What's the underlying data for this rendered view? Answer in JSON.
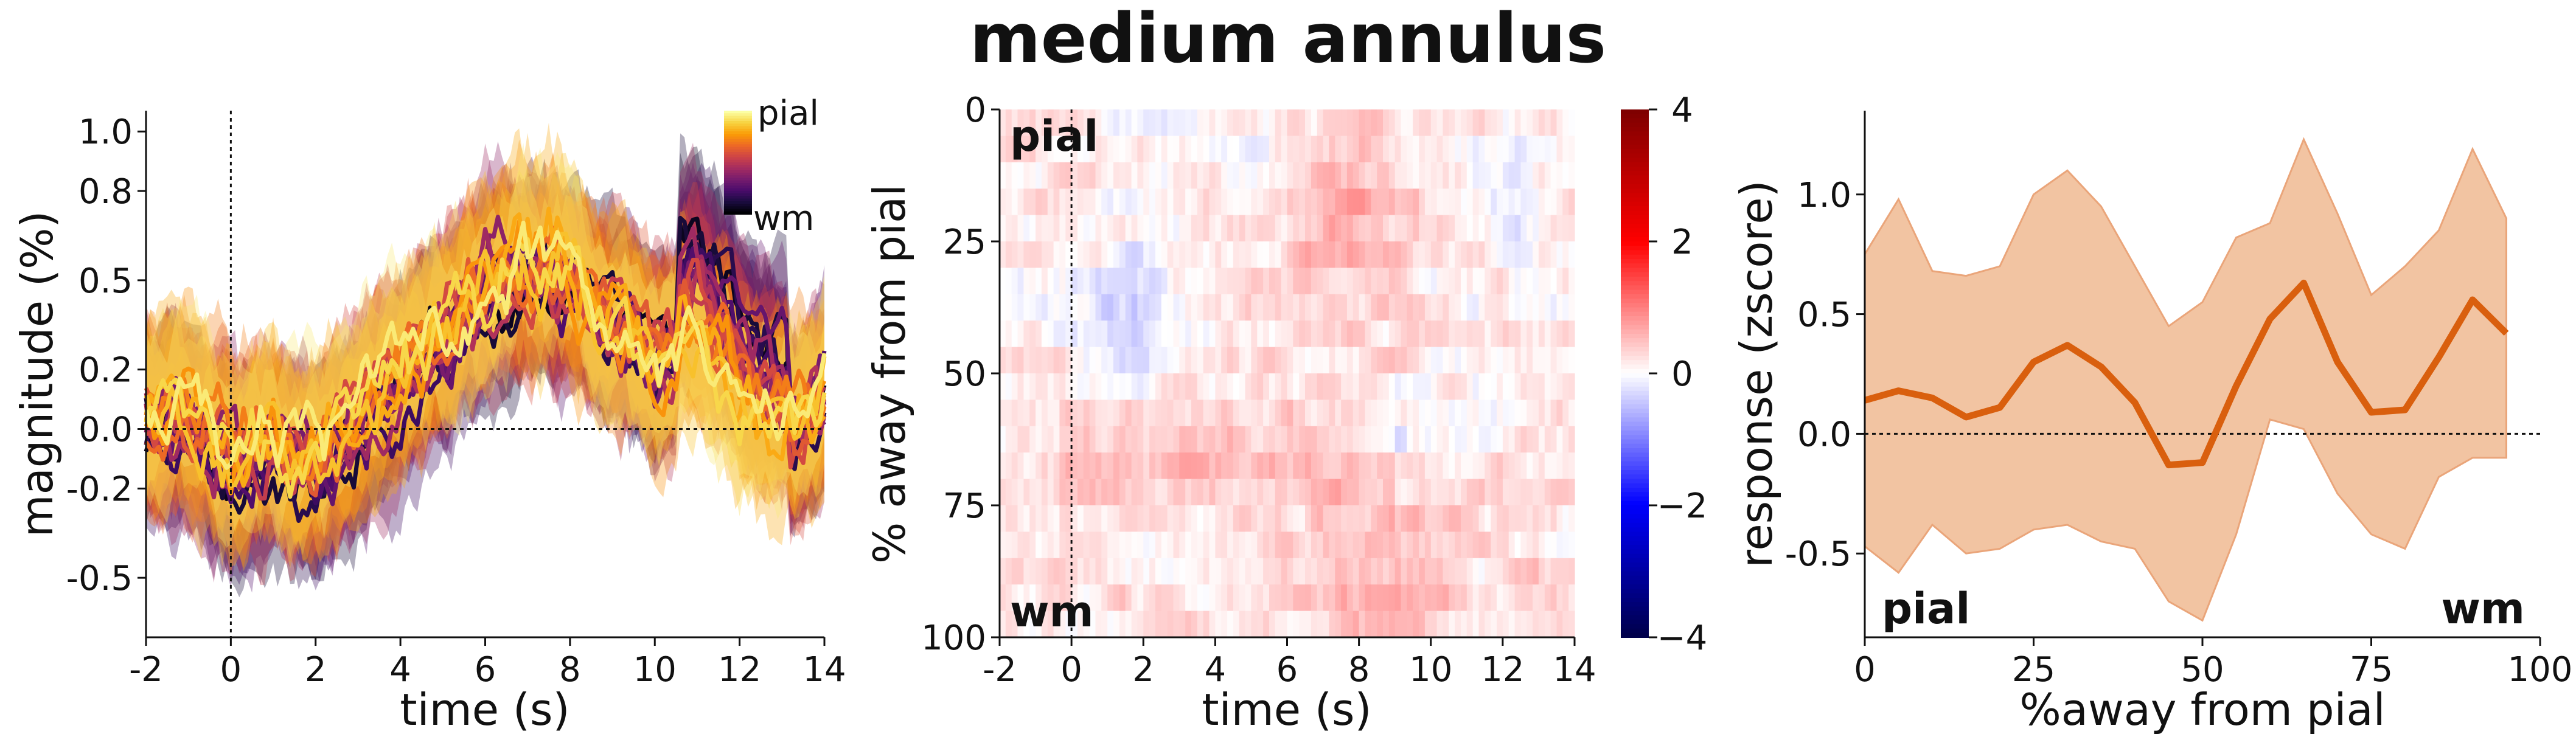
{
  "figure": {
    "title": "medium annulus",
    "title_color": "#d95f0e"
  },
  "chart_data": [
    {
      "type": "line",
      "panel": "left",
      "xlabel": "time (s)",
      "ylabel": "magnitude (%)",
      "xlim": [
        -2,
        14
      ],
      "ylim": [
        -0.7,
        1.07
      ],
      "xticks": [
        -2,
        0,
        2,
        4,
        6,
        8,
        10,
        12,
        14
      ],
      "xtick_labels": [
        "-2",
        "0",
        "2",
        "4",
        "6",
        "8",
        "10",
        "12",
        "14"
      ],
      "yticks": [
        -0.5,
        -0.2,
        0.0,
        0.2,
        0.5,
        0.8,
        1.0
      ],
      "ytick_labels": [
        "-0.5",
        "-0.2",
        "0.0",
        "0.2",
        "0.5",
        "0.8",
        "1.0"
      ],
      "grid": false,
      "reference_lines": {
        "x": 0,
        "y": 0
      },
      "colorbar": {
        "colormap": "inferno",
        "top_label": "pial",
        "bottom_label": "wm"
      },
      "layers": 20,
      "x": [
        -2,
        -1,
        0,
        1,
        2,
        3,
        4,
        5,
        6,
        7,
        8,
        9,
        10,
        11,
        12,
        13,
        14
      ],
      "mean_response": [
        0.05,
        0.02,
        -0.1,
        -0.05,
        -0.12,
        0.05,
        0.2,
        0.3,
        0.45,
        0.55,
        0.5,
        0.35,
        0.2,
        0.3,
        0.05,
        -0.05,
        0.1
      ],
      "note": "20 layer-wise series (pial to wm) colored by inferno colormap with shaded error bands"
    },
    {
      "type": "heatmap",
      "panel": "middle",
      "xlabel": "time (s)",
      "ylabel": "% away from pial",
      "xlim": [
        -2,
        14
      ],
      "ylim": [
        100,
        0
      ],
      "xticks": [
        -2,
        0,
        2,
        4,
        6,
        8,
        10,
        12,
        14
      ],
      "xtick_labels": [
        "-2",
        "0",
        "2",
        "4",
        "6",
        "8",
        "10",
        "12",
        "14"
      ],
      "yticks": [
        0,
        25,
        50,
        75,
        100
      ],
      "ytick_labels": [
        "0",
        "25",
        "50",
        "75",
        "100"
      ],
      "top_label": "pial",
      "bottom_label": "wm",
      "reference_lines": {
        "x": 0
      },
      "colorbar": {
        "colormap": "seismic",
        "vmin": -4,
        "vmax": 4,
        "ticks": [
          4,
          2,
          0,
          -2,
          -4
        ],
        "tick_labels": [
          "4",
          "2",
          "0",
          "−2",
          "−4"
        ]
      }
    },
    {
      "type": "line",
      "panel": "right",
      "xlabel": "%away from pial",
      "ylabel": "response (zscore)",
      "xlim": [
        0,
        100
      ],
      "ylim": [
        -0.85,
        1.35
      ],
      "xticks": [
        0,
        25,
        50,
        75,
        100
      ],
      "xtick_labels": [
        "0",
        "25",
        "50",
        "75",
        "100"
      ],
      "yticks": [
        -0.5,
        0.0,
        0.5,
        1.0
      ],
      "ytick_labels": [
        "-0.5",
        "0.0",
        "0.5",
        "1.0"
      ],
      "corner_left": "pial",
      "corner_right": "wm",
      "reference_lines": {
        "y": 0
      },
      "line_color": "#d95f0e",
      "band_color": "#f2c4a2",
      "x": [
        0,
        5,
        10,
        15,
        20,
        25,
        30,
        35,
        40,
        45,
        50,
        55,
        60,
        65,
        70,
        75,
        80,
        85,
        90,
        95
      ],
      "values": [
        0.14,
        0.18,
        0.15,
        0.07,
        0.11,
        0.3,
        0.37,
        0.28,
        0.13,
        -0.13,
        -0.12,
        0.2,
        0.48,
        0.63,
        0.3,
        0.09,
        0.1,
        0.32,
        0.56,
        0.42
      ],
      "upper": [
        0.75,
        0.98,
        0.68,
        0.66,
        0.7,
        1.0,
        1.1,
        0.95,
        0.7,
        0.45,
        0.55,
        0.82,
        0.88,
        1.23,
        0.92,
        0.58,
        0.7,
        0.85,
        1.19,
        0.9
      ],
      "lower": [
        -0.47,
        -0.58,
        -0.38,
        -0.5,
        -0.48,
        -0.4,
        -0.38,
        -0.45,
        -0.48,
        -0.7,
        -0.78,
        -0.42,
        0.06,
        0.02,
        -0.25,
        -0.42,
        -0.48,
        -0.18,
        -0.1,
        -0.1
      ]
    }
  ]
}
